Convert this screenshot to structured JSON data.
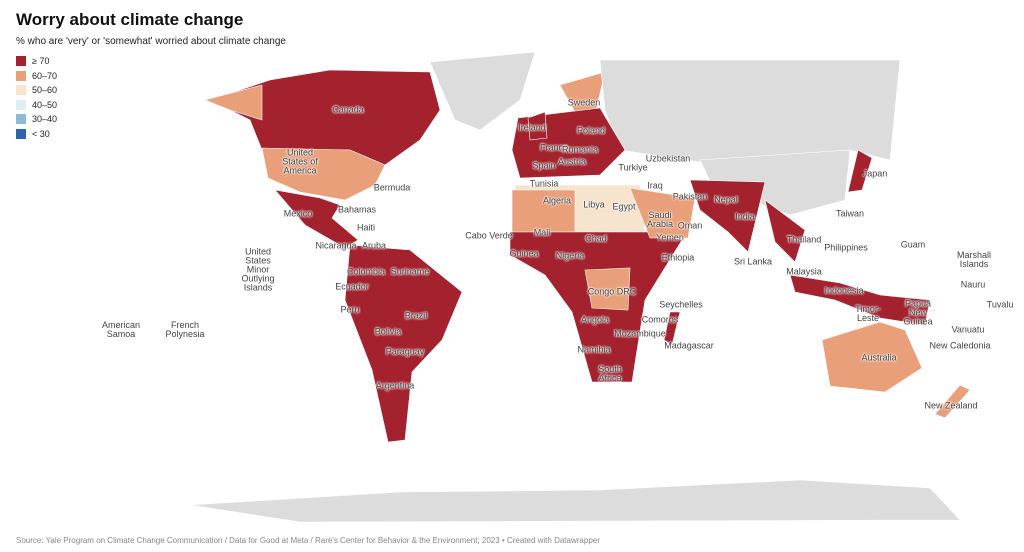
{
  "header": {
    "title": "Worry about climate change",
    "subtitle": "% who are 'very' or 'somewhat' worried about climate change"
  },
  "legend": {
    "items": [
      {
        "label": "≥ 70",
        "color": "#a3222e"
      },
      {
        "label": "60–70",
        "color": "#e9a07a"
      },
      {
        "label": "50–60",
        "color": "#f7e4cf"
      },
      {
        "label": "40–50",
        "color": "#dfeef0"
      },
      {
        "label": "30–40",
        "color": "#8bbbd9"
      },
      {
        "label": "< 30",
        "color": "#2e62ad"
      }
    ]
  },
  "map": {
    "labels": [
      "Canada",
      "United States of America",
      "Mexico",
      "Bermuda",
      "Bahamas",
      "Haiti",
      "Nicaragua",
      "Aruba",
      "Colombia",
      "Suriname",
      "Ecuador",
      "Peru",
      "Brazil",
      "Bolivia",
      "Paraguay",
      "Argentina",
      "Sweden",
      "Ireland",
      "Poland",
      "France",
      "Romania",
      "Spain",
      "Austria",
      "Turkiye",
      "Uzbekistan",
      "Tunisia",
      "Iraq",
      "Algeria",
      "Libya",
      "Egypt",
      "Saudi Arabia",
      "Oman",
      "Yemen",
      "Pakistan",
      "Nepal",
      "India",
      "Japan",
      "Taiwan",
      "Cabo Verde",
      "Mali",
      "Chad",
      "Guinea",
      "Nigeria",
      "Ethiopia",
      "Congo DRC",
      "Seychelles",
      "Angola",
      "Comoros",
      "Mozambique",
      "Madagascar",
      "Namibia",
      "South Africa",
      "Thailand",
      "Sri Lanka",
      "Philippines",
      "Guam",
      "Malaysia",
      "Indonesia",
      "Papua New Guinea",
      "Timor-Leste",
      "Marshall Islands",
      "Nauru",
      "Tuvalu",
      "Vanuatu",
      "New Caledonia",
      "Australia",
      "New Zealand",
      "American Samoa",
      "French Polynesia",
      "United States Minor Outlying Islands"
    ]
  },
  "footer": {
    "source": "Source: Yale Program on Climate Change Communication / Data for Good at Meta / Rare's Center for Behavior & the Environment; 2023 • Created with Datawrapper"
  }
}
